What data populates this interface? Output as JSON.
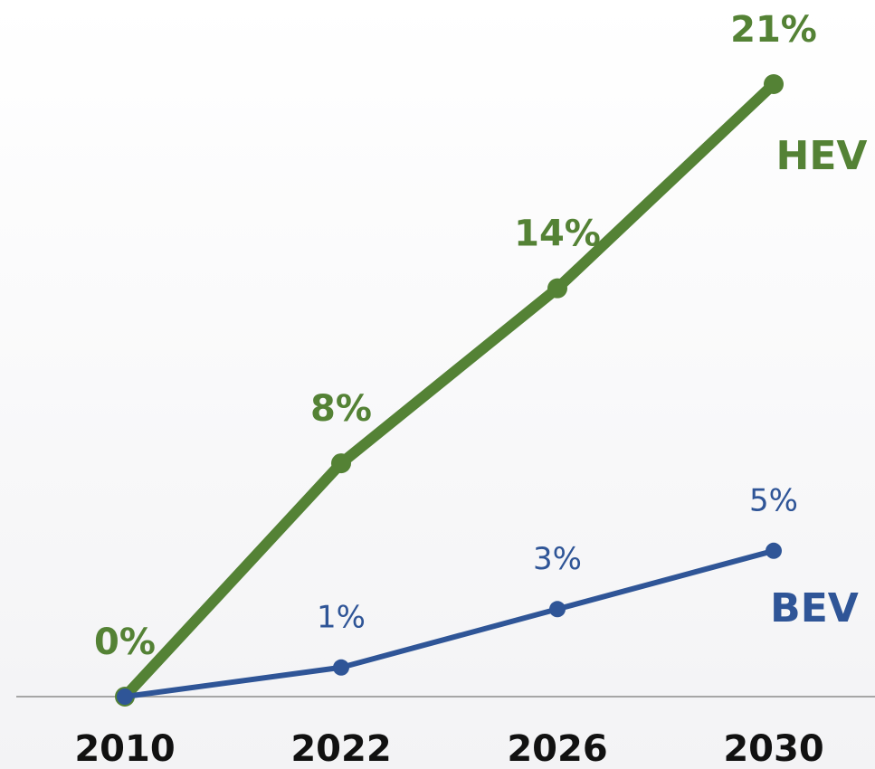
{
  "chart_data": {
    "type": "line",
    "categories": [
      "2010",
      "2022",
      "2026",
      "2030"
    ],
    "ylim": [
      0,
      21
    ],
    "series": [
      {
        "name": "HEV",
        "color": "#548235",
        "values": [
          0,
          8,
          14,
          21
        ],
        "value_labels": [
          "0%",
          "8%",
          "14%",
          "21%"
        ]
      },
      {
        "name": "BEV",
        "color": "#2f5597",
        "values": [
          0,
          1,
          3,
          5
        ],
        "value_labels": [
          null,
          "1%",
          "3%",
          "5%"
        ]
      }
    ]
  }
}
